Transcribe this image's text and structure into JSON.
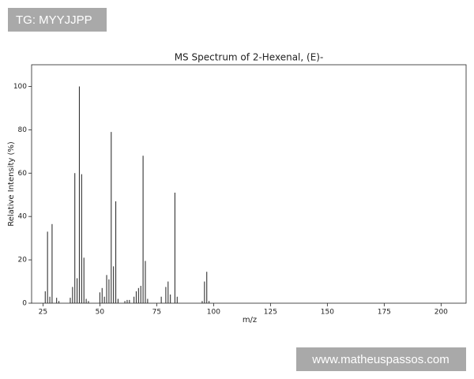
{
  "watermarks": {
    "top_left": "TG: MYYJJPP",
    "bottom_right": "www.matheuspassos.com"
  },
  "chart_data": {
    "type": "stem",
    "title": "MS Spectrum of 2-Hexenal, (E)-",
    "x_label": "m/z",
    "y_label": "Relative Intensity (%)",
    "color": "#333333",
    "x": [
      26,
      27,
      28,
      29,
      31,
      32,
      37,
      38,
      39,
      40,
      41,
      42,
      43,
      44,
      45,
      50,
      51,
      52,
      53,
      54,
      55,
      56,
      57,
      58,
      61,
      62,
      63,
      65,
      66,
      67,
      68,
      69,
      70,
      71,
      77,
      79,
      80,
      81,
      83,
      84,
      95,
      96,
      97,
      98
    ],
    "values": [
      5.5,
      33,
      3,
      36.5,
      2.5,
      1,
      2.5,
      7.5,
      60,
      11.5,
      100,
      59.5,
      21,
      2,
      1,
      5,
      7,
      3,
      13,
      11,
      79,
      17,
      47,
      2,
      1,
      1.5,
      1.5,
      3,
      5.5,
      7,
      8,
      68,
      19.5,
      2,
      3,
      7.5,
      10,
      4,
      51,
      3,
      1,
      10,
      14.5,
      1
    ],
    "xlim": [
      20,
      211
    ],
    "ylim": [
      0,
      110
    ],
    "xticks": [
      25,
      50,
      75,
      100,
      125,
      150,
      175,
      200
    ],
    "yticks": [
      0,
      20,
      40,
      60,
      80,
      100
    ]
  }
}
